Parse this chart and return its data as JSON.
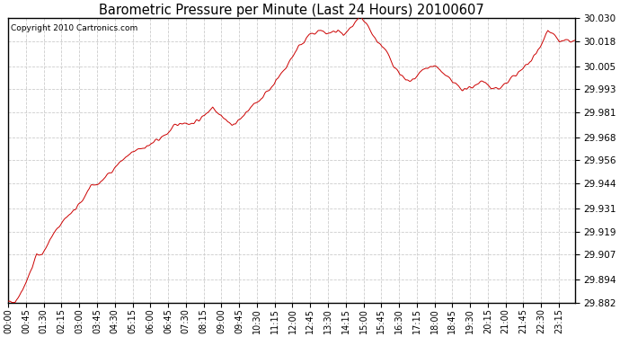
{
  "title": "Barometric Pressure per Minute (Last 24 Hours) 20100607",
  "copyright": "Copyright 2010 Cartronics.com",
  "line_color": "#cc0000",
  "background_color": "#ffffff",
  "plot_bg_color": "#ffffff",
  "grid_color": "#cccccc",
  "yticks": [
    29.882,
    29.894,
    29.907,
    29.919,
    29.931,
    29.944,
    29.956,
    29.968,
    29.981,
    29.993,
    30.005,
    30.018,
    30.03
  ],
  "ylim": [
    29.882,
    30.03
  ],
  "xtick_labels": [
    "00:00",
    "00:45",
    "01:30",
    "02:15",
    "03:00",
    "03:45",
    "04:30",
    "05:15",
    "06:00",
    "06:45",
    "07:30",
    "08:15",
    "09:00",
    "09:45",
    "10:30",
    "11:15",
    "12:00",
    "12:45",
    "13:30",
    "14:15",
    "15:00",
    "15:45",
    "16:30",
    "17:15",
    "18:00",
    "18:45",
    "19:30",
    "20:15",
    "21:00",
    "21:45",
    "22:30",
    "23:15"
  ],
  "ctrl_t": [
    0.0,
    0.01,
    0.02,
    0.03,
    0.042,
    0.05,
    0.06,
    0.07,
    0.083,
    0.09,
    0.1,
    0.11,
    0.12,
    0.13,
    0.14,
    0.15,
    0.16,
    0.17,
    0.18,
    0.19,
    0.2,
    0.21,
    0.22,
    0.23,
    0.24,
    0.25,
    0.26,
    0.27,
    0.28,
    0.29,
    0.3,
    0.31,
    0.32,
    0.33,
    0.34,
    0.35,
    0.36,
    0.37,
    0.38,
    0.39,
    0.4,
    0.41,
    0.42,
    0.43,
    0.44,
    0.45,
    0.46,
    0.47,
    0.48,
    0.49,
    0.5,
    0.51,
    0.52,
    0.53,
    0.54,
    0.55,
    0.56,
    0.57,
    0.58,
    0.59,
    0.6,
    0.61,
    0.62,
    0.63,
    0.64,
    0.65,
    0.66,
    0.67,
    0.68,
    0.69,
    0.7,
    0.71,
    0.72,
    0.73,
    0.74,
    0.75,
    0.76,
    0.77,
    0.78,
    0.79,
    0.8,
    0.81,
    0.82,
    0.83,
    0.84,
    0.85,
    0.86,
    0.87,
    0.88,
    0.89,
    0.9,
    0.91,
    0.92,
    0.93,
    0.94,
    0.95,
    0.96,
    0.97,
    0.98,
    1.0
  ],
  "ctrl_v": [
    29.882,
    29.882,
    29.886,
    29.892,
    29.9,
    29.907,
    29.907,
    29.913,
    29.919,
    29.922,
    29.926,
    29.928,
    29.931,
    29.935,
    29.94,
    29.943,
    29.944,
    29.947,
    29.95,
    29.953,
    29.956,
    29.958,
    29.96,
    29.962,
    29.963,
    29.964,
    29.966,
    29.968,
    29.97,
    29.973,
    29.975,
    29.976,
    29.975,
    29.976,
    29.978,
    29.981,
    29.984,
    29.981,
    29.978,
    29.975,
    29.975,
    29.978,
    29.981,
    29.984,
    29.987,
    29.99,
    29.993,
    29.997,
    30.001,
    30.005,
    30.01,
    30.015,
    30.018,
    30.021,
    30.022,
    30.024,
    30.022,
    30.022,
    30.024,
    30.021,
    30.024,
    30.027,
    30.03,
    30.027,
    30.022,
    30.018,
    30.015,
    30.01,
    30.005,
    30.001,
    29.997,
    29.997,
    30.0,
    30.003,
    30.005,
    30.005,
    30.003,
    30.0,
    29.997,
    29.995,
    29.993,
    29.993,
    29.995,
    29.997,
    29.997,
    29.993,
    29.993,
    29.995,
    29.997,
    30.0,
    30.002,
    30.005,
    30.008,
    30.012,
    30.018,
    30.024,
    30.021,
    30.018,
    30.018,
    30.018
  ],
  "num_points": 1440,
  "seed": 42
}
